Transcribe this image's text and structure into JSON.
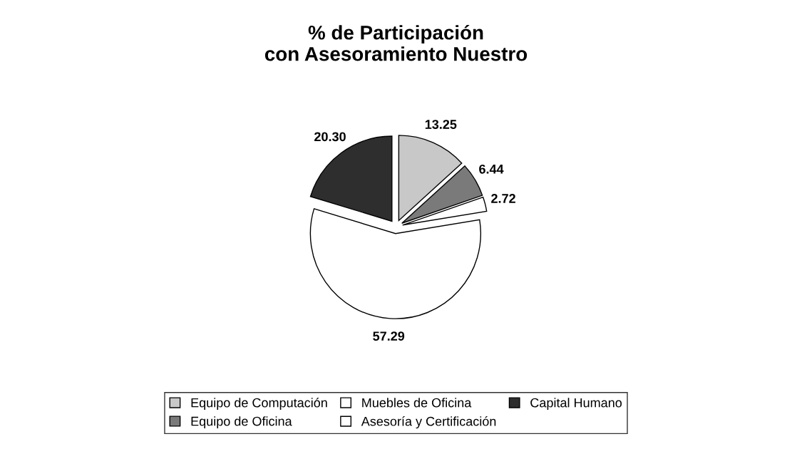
{
  "chart_data": {
    "type": "pie",
    "title": "% de Participación\ncon Asesoramiento Nuestro",
    "categories": [
      "Equipo de Computación",
      "Equipo de Oficina",
      "Muebles de Oficina",
      "Asesoría y Certificación",
      "Capital Humano"
    ],
    "values": [
      13.25,
      6.44,
      2.72,
      57.29,
      20.3
    ],
    "colors": [
      "#c8c8c8",
      "#7a7a7a",
      "#ffffff",
      "#ffffff",
      "#2e2e2e"
    ],
    "value_labels": [
      "13.25",
      "6.44",
      "2.72",
      "57.29",
      "20.30"
    ],
    "legend": "bottom"
  }
}
